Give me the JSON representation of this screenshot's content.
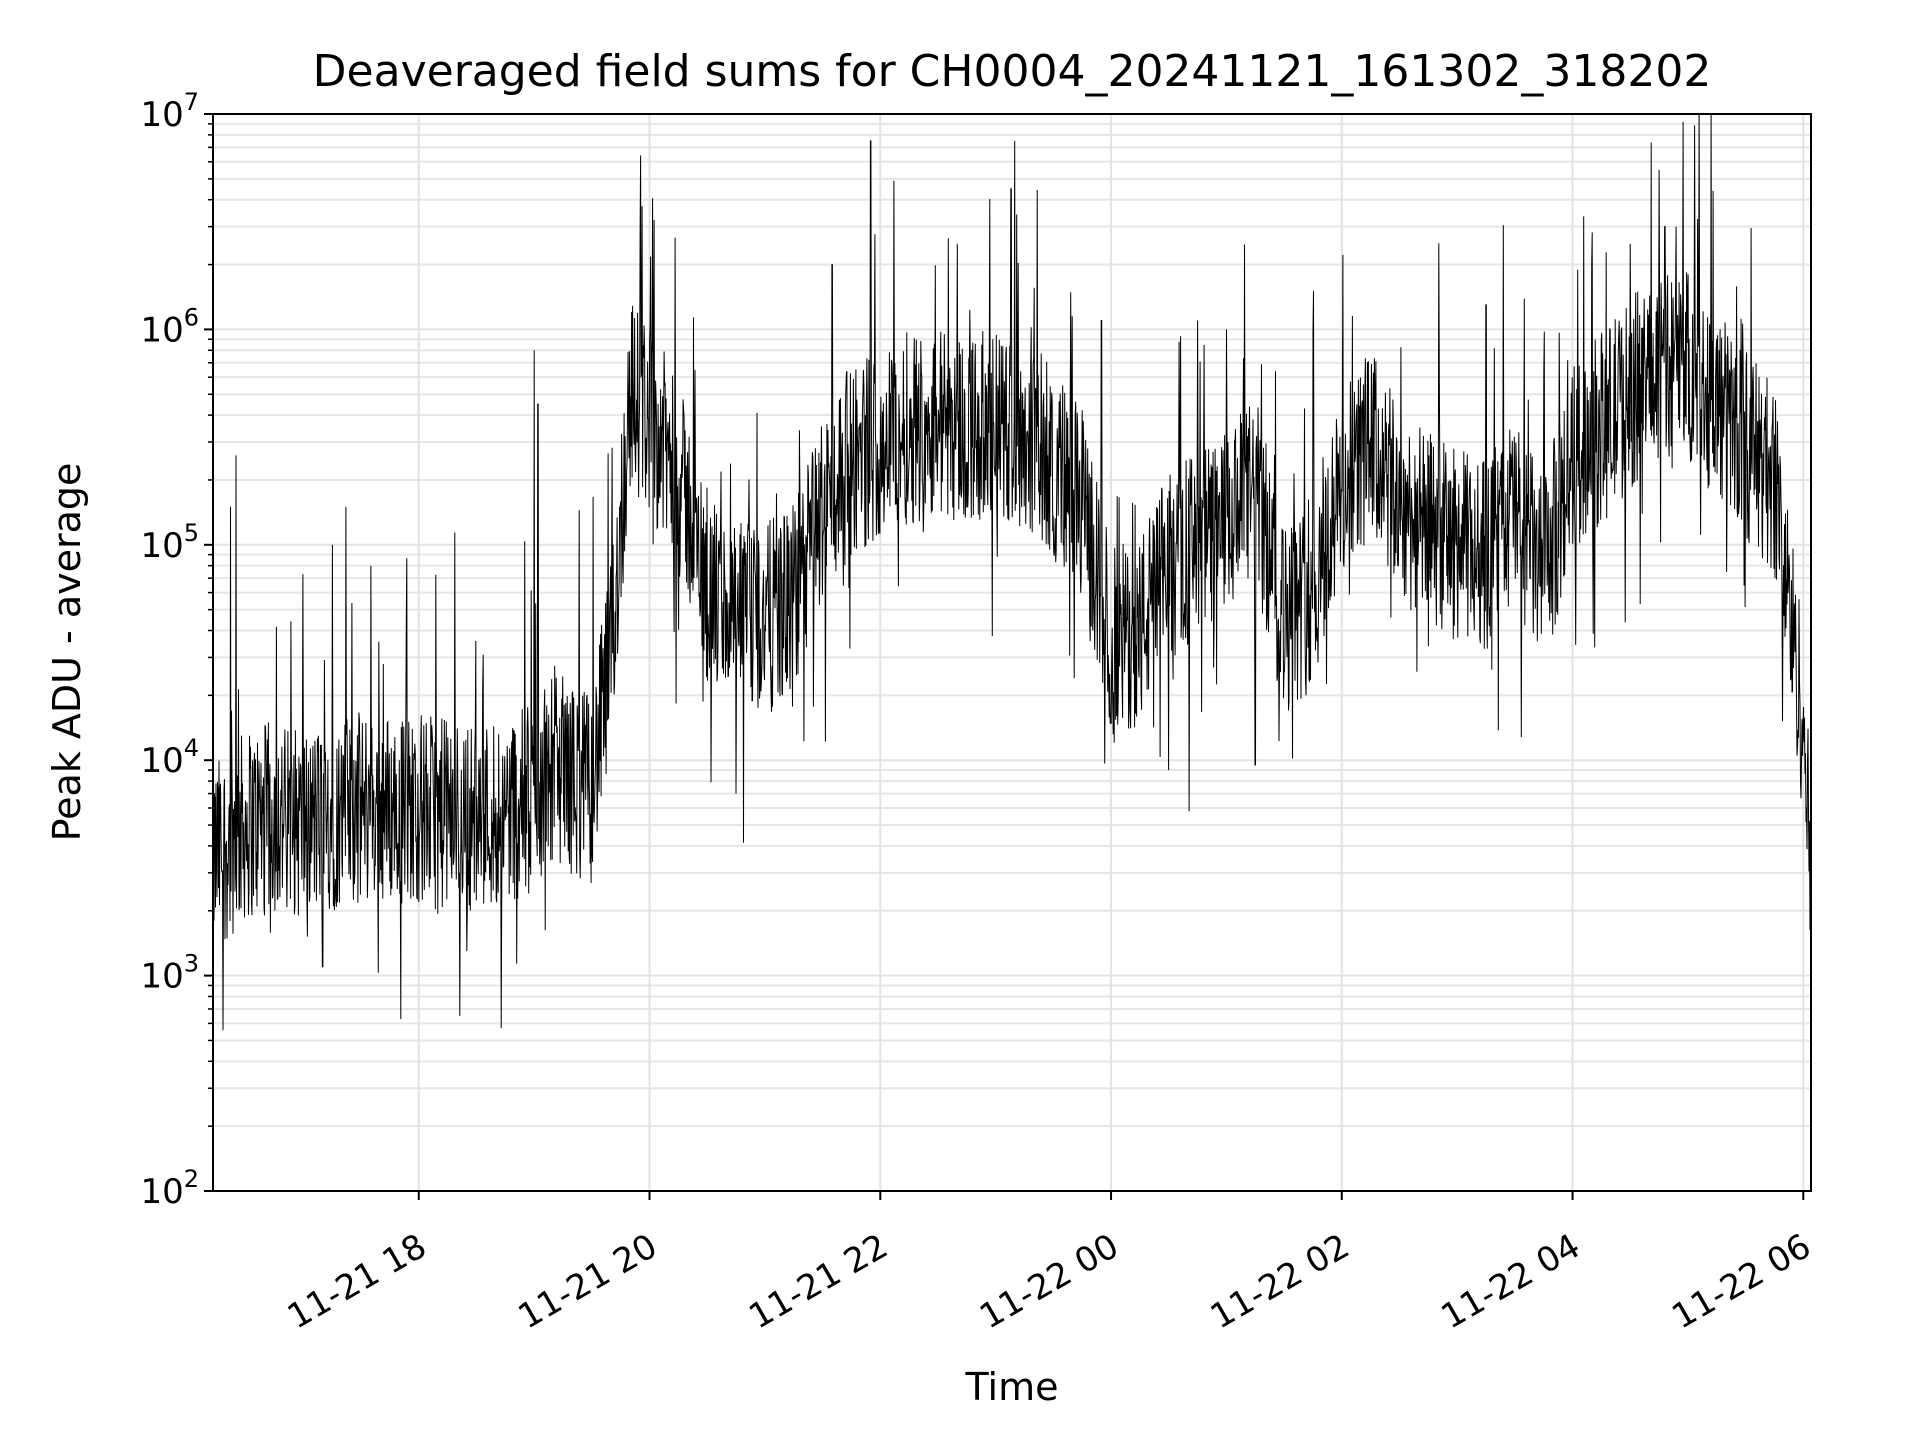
{
  "chart_data": {
    "type": "line",
    "title": "Deaveraged field sums for CH0004_20241121_161302_318202",
    "xlabel": "Time",
    "ylabel": "Peak ADU - average",
    "x_range": [
      "2024-11-21 16:13",
      "2024-11-22 06:04"
    ],
    "x_ticks": [
      "11-21 18",
      "11-21 20",
      "11-21 22",
      "11-22 00",
      "11-22 02",
      "11-22 04",
      "11-22 06"
    ],
    "y_scale": "log",
    "ylim": [
      100,
      10000000
    ],
    "y_ticks": [
      {
        "base": "10",
        "exp": "2",
        "value": 100
      },
      {
        "base": "10",
        "exp": "3",
        "value": 1000
      },
      {
        "base": "10",
        "exp": "4",
        "value": 10000
      },
      {
        "base": "10",
        "exp": "5",
        "value": 100000
      },
      {
        "base": "10",
        "exp": "6",
        "value": 1000000
      },
      {
        "base": "10",
        "exp": "7",
        "value": 10000000
      }
    ],
    "grid": true,
    "line_color": "#000000",
    "series": [
      {
        "x": [
          "2024-11-21 16:13",
          "2024-11-21 16:30",
          "2024-11-21 16:45",
          "2024-11-21 17:00",
          "2024-11-21 17:15",
          "2024-11-21 17:30",
          "2024-11-21 17:45",
          "2024-11-21 18:00",
          "2024-11-21 18:15",
          "2024-11-21 18:30",
          "2024-11-21 18:45",
          "2024-11-21 19:00",
          "2024-11-21 19:10",
          "2024-11-21 19:20",
          "2024-11-21 19:30",
          "2024-11-21 19:40",
          "2024-11-21 19:50",
          "2024-11-21 20:00",
          "2024-11-21 20:10",
          "2024-11-21 20:20",
          "2024-11-21 20:30",
          "2024-11-21 20:45",
          "2024-11-21 21:00",
          "2024-11-21 21:15",
          "2024-11-21 21:30",
          "2024-11-21 21:45",
          "2024-11-21 22:00",
          "2024-11-21 22:15",
          "2024-11-21 22:30",
          "2024-11-21 22:45",
          "2024-11-21 23:00",
          "2024-11-21 23:15",
          "2024-11-21 23:30",
          "2024-11-21 23:45",
          "2024-11-22 00:00",
          "2024-11-22 00:15",
          "2024-11-22 00:30",
          "2024-11-22 00:45",
          "2024-11-22 01:00",
          "2024-11-22 01:15",
          "2024-11-22 01:30",
          "2024-11-22 01:45",
          "2024-11-22 02:00",
          "2024-11-22 02:15",
          "2024-11-22 02:30",
          "2024-11-22 02:45",
          "2024-11-22 03:00",
          "2024-11-22 03:15",
          "2024-11-22 03:30",
          "2024-11-22 03:45",
          "2024-11-22 04:00",
          "2024-11-22 04:15",
          "2024-11-22 04:30",
          "2024-11-22 04:45",
          "2024-11-22 05:00",
          "2024-11-22 05:15",
          "2024-11-22 05:30",
          "2024-11-22 05:45",
          "2024-11-22 05:52",
          "2024-11-22 06:00",
          "2024-11-22 06:04"
        ],
        "values": [
          3500,
          5000,
          5500,
          5000,
          5500,
          6000,
          6000,
          6000,
          5500,
          5500,
          6000,
          6500,
          10000,
          8000,
          7500,
          30000,
          500000,
          400000,
          250000,
          150000,
          60000,
          45000,
          45000,
          55000,
          150000,
          250000,
          300000,
          350000,
          380000,
          350000,
          350000,
          330000,
          250000,
          150000,
          35000,
          40000,
          80000,
          100000,
          120000,
          180000,
          45000,
          60000,
          180000,
          300000,
          150000,
          120000,
          100000,
          90000,
          150000,
          70000,
          250000,
          350000,
          500000,
          700000,
          700000,
          450000,
          300000,
          200000,
          60000,
          15000,
          2500
        ]
      }
    ],
    "spikes": [
      {
        "x": "2024-11-21 16:25",
        "value": 260000
      },
      {
        "x": "2024-11-21 16:22",
        "value": 150000
      },
      {
        "x": "2024-11-21 17:15",
        "value": 100000
      },
      {
        "x": "2024-11-21 17:22",
        "value": 150000
      },
      {
        "x": "2024-11-21 17:35",
        "value": 80000
      },
      {
        "x": "2024-11-21 17:10",
        "value": 1100
      },
      {
        "x": "2024-11-21 18:25",
        "value": 1300
      },
      {
        "x": "2024-11-21 19:00",
        "value": 800000
      },
      {
        "x": "2024-11-21 19:02",
        "value": 450000
      },
      {
        "x": "2024-11-21 19:55",
        "value": 2800000
      },
      {
        "x": "2024-11-21 20:45",
        "value": 7000
      },
      {
        "x": "2024-11-21 21:35",
        "value": 2000000
      },
      {
        "x": "2024-11-21 21:55",
        "value": 7500000
      },
      {
        "x": "2024-11-21 22:40",
        "value": 2500000
      },
      {
        "x": "2024-11-21 23:10",
        "value": 7500000
      },
      {
        "x": "2024-11-21 23:08",
        "value": 4500000
      },
      {
        "x": "2024-11-21 23:55",
        "value": 1100000
      },
      {
        "x": "2024-11-22 00:30",
        "value": 9000
      },
      {
        "x": "2024-11-22 00:45",
        "value": 1100000
      },
      {
        "x": "2024-11-22 01:00",
        "value": 1000000
      },
      {
        "x": "2024-11-22 01:15",
        "value": 9500
      },
      {
        "x": "2024-11-22 01:45",
        "value": 1000000
      },
      {
        "x": "2024-11-22 03:15",
        "value": 1300000
      },
      {
        "x": "2024-11-22 04:10",
        "value": 2000000
      },
      {
        "x": "2024-11-22 04:30",
        "value": 2500000
      },
      {
        "x": "2024-11-22 04:45",
        "value": 5500000
      },
      {
        "x": "2024-11-22 04:48",
        "value": 3000000
      },
      {
        "x": "2024-11-22 05:00",
        "value": 1800000
      }
    ]
  }
}
